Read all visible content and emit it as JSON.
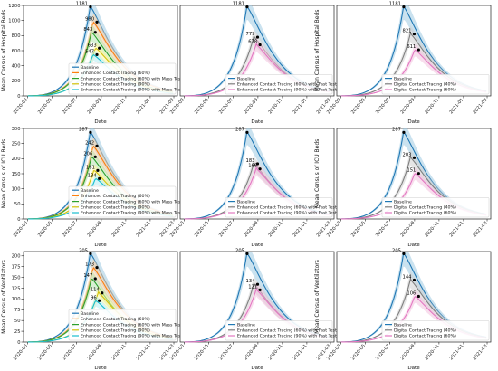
{
  "figure": {
    "panel_labels": []
  },
  "styles": {
    "series_colors": {
      "Baseline": "#1f77b4",
      "Enhanced Contact Tracing (60%)": "#ff7f0e",
      "Enhanced Contact Tracing (60%) with Mass Testing": "#2ca02c",
      "Enhanced Contact Tracing (90%)": "#d4c20a",
      "Enhanced Contact Tracing (90%) with Mass Testing": "#17becf",
      "Enhanced Contact Tracing (60%) with Fast Testing": "#7f7f7f",
      "Enhanced Contact Tracing (90%) with Fast Testing": "#e377c2",
      "Digital Contact Tracing (40%)": "#7f7f7f",
      "Digital Contact Tracing (60%)": "#e377c2"
    },
    "band_colors": {
      "Baseline": "#9ecae1",
      "Enhanced Contact Tracing (60%)": "#fdd0a2",
      "Enhanced Contact Tracing (60%) with Mass Testing": "#b6e3b0",
      "Enhanced Contact Tracing (90%)": "#fff59d",
      "Enhanced Contact Tracing (90%) with Mass Testing": "#b4ecf2",
      "Enhanced Contact Tracing (60%) with Fast Testing": "#d0d0d0",
      "Enhanced Contact Tracing (90%) with Fast Testing": "#f3c3df",
      "Digital Contact Tracing (40%)": "#d0d0d0",
      "Digital Contact Tracing (60%)": "#f3c3df"
    }
  },
  "chart_data": [
    {
      "type": "line",
      "row": 0,
      "col": 0,
      "xlabel": "Date",
      "ylabel": "Mean Census of Hospital Beds",
      "x_ticks": [
        "2020-03",
        "2020-05",
        "2020-07",
        "2020-09",
        "2020-11",
        "2021-01",
        "2021-03"
      ],
      "ylim": [
        0,
        1200
      ],
      "y_ticks": [
        0,
        200,
        400,
        600,
        800,
        1000,
        1200
      ],
      "legend": "lower-right",
      "series": [
        {
          "name": "Baseline",
          "peak_x": "2020-08-05",
          "peak": 1181
        },
        {
          "name": "Enhanced Contact Tracing (60%)",
          "peak_x": "2020-08-12",
          "peak": 980
        },
        {
          "name": "Enhanced Contact Tracing (60%) with Mass Testing",
          "peak_x": "2020-08-08",
          "peak": 843
        },
        {
          "name": "Enhanced Contact Tracing (90%)",
          "peak_x": "2020-08-18",
          "peak": 633
        },
        {
          "name": "Enhanced Contact Tracing (90%) with Mass Testing",
          "peak_x": "2020-08-12",
          "peak": 547
        }
      ],
      "labels": [
        "1181",
        "980",
        "843",
        "633",
        "547"
      ]
    },
    {
      "type": "line",
      "row": 0,
      "col": 1,
      "xlabel": "Date",
      "ylabel": "",
      "x_ticks": [
        "2020-03",
        "2020-05",
        "2020-07",
        "2020-09",
        "2020-11",
        "2021-01",
        "2021-03"
      ],
      "ylim": [
        0,
        1200
      ],
      "legend": "lower-right",
      "series": [
        {
          "name": "Baseline",
          "peak_x": "2020-08-05",
          "peak": 1181
        },
        {
          "name": "Enhanced Contact Tracing (60%) with Fast Testing",
          "peak_x": "2020-08-22",
          "peak": 779
        },
        {
          "name": "Enhanced Contact Tracing (90%) with Fast Testing",
          "peak_x": "2020-08-28",
          "peak": 678
        }
      ],
      "labels": [
        "1181",
        "779",
        "678"
      ]
    },
    {
      "type": "line",
      "row": 0,
      "col": 2,
      "xlabel": "Date",
      "ylabel": "Mean Census of Hospital Beds",
      "x_ticks": [
        "2020-03",
        "2020-05",
        "2020-07",
        "2020-09",
        "2020-11",
        "2021-01",
        "2021-03"
      ],
      "ylim": [
        0,
        1200
      ],
      "legend": "lower-right",
      "series": [
        {
          "name": "Baseline",
          "peak_x": "2020-08-05",
          "peak": 1181
        },
        {
          "name": "Digital Contact Tracing (40%)",
          "peak_x": "2020-08-22",
          "peak": 821
        },
        {
          "name": "Digital Contact Tracing (60%)",
          "peak_x": "2020-09-02",
          "peak": 611
        }
      ],
      "labels": [
        "1181",
        "821",
        "611"
      ]
    },
    {
      "type": "line",
      "row": 1,
      "col": 0,
      "xlabel": "Date",
      "ylabel": "Mean Census of ICU Beds",
      "x_ticks": [
        "2020-03",
        "2020-05",
        "2020-07",
        "2020-09",
        "2020-11",
        "2021-01",
        "2021-03"
      ],
      "ylim": [
        0,
        300
      ],
      "y_ticks": [
        0,
        50,
        100,
        150,
        200,
        250,
        300
      ],
      "legend": "lower-right",
      "series": [
        {
          "name": "Baseline",
          "peak_x": "2020-08-05",
          "peak": 287
        },
        {
          "name": "Enhanced Contact Tracing (60%)",
          "peak_x": "2020-08-12",
          "peak": 242
        },
        {
          "name": "Enhanced Contact Tracing (60%) with Mass Testing",
          "peak_x": "2020-08-08",
          "peak": 206
        },
        {
          "name": "Enhanced Contact Tracing (90%)",
          "peak_x": "2020-08-14",
          "peak": 161
        },
        {
          "name": "Enhanced Contact Tracing (90%) with Mass Testing",
          "peak_x": "2020-08-18",
          "peak": 134
        }
      ],
      "labels": [
        "287",
        "242",
        "206",
        "161",
        "134"
      ]
    },
    {
      "type": "line",
      "row": 1,
      "col": 1,
      "xlabel": "Date",
      "ylabel": "",
      "x_ticks": [
        "2020-03",
        "2020-05",
        "2020-07",
        "2020-09",
        "2020-11",
        "2021-01",
        "2021-03"
      ],
      "ylim": [
        0,
        300
      ],
      "legend": "lower-right",
      "series": [
        {
          "name": "Baseline",
          "peak_x": "2020-08-05",
          "peak": 287
        },
        {
          "name": "Enhanced Contact Tracing (60%) with Fast Testing",
          "peak_x": "2020-08-22",
          "peak": 183
        },
        {
          "name": "Enhanced Contact Tracing (90%) with Fast Testing",
          "peak_x": "2020-08-28",
          "peak": 166
        }
      ],
      "labels": [
        "287",
        "183",
        "166"
      ]
    },
    {
      "type": "line",
      "row": 1,
      "col": 2,
      "xlabel": "Date",
      "ylabel": "Mean Census of ICU Beds",
      "x_ticks": [
        "2020-03",
        "2020-05",
        "2020-07",
        "2020-09",
        "2020-11",
        "2021-01",
        "2021-03"
      ],
      "ylim": [
        0,
        300
      ],
      "legend": "lower-right",
      "series": [
        {
          "name": "Baseline",
          "peak_x": "2020-08-05",
          "peak": 287
        },
        {
          "name": "Digital Contact Tracing (40%)",
          "peak_x": "2020-08-22",
          "peak": 203
        },
        {
          "name": "Digital Contact Tracing (60%)",
          "peak_x": "2020-09-02",
          "peak": 151
        }
      ],
      "labels": [
        "287",
        "203",
        "151"
      ]
    },
    {
      "type": "line",
      "row": 2,
      "col": 0,
      "xlabel": "Date",
      "ylabel": "Mean Census of Ventilators",
      "x_ticks": [
        "2020-03",
        "2020-05",
        "2020-07",
        "2020-09",
        "2020-11",
        "2021-01",
        "2021-03"
      ],
      "ylim": [
        0,
        210
      ],
      "y_ticks": [
        0,
        25,
        50,
        75,
        100,
        125,
        150,
        175,
        200
      ],
      "legend": "lower-right",
      "series": [
        {
          "name": "Baseline",
          "peak_x": "2020-08-05",
          "peak": 205
        },
        {
          "name": "Enhanced Contact Tracing (60%)",
          "peak_x": "2020-08-12",
          "peak": 173
        },
        {
          "name": "Enhanced Contact Tracing (60%) with Mass Testing",
          "peak_x": "2020-08-08",
          "peak": 147
        },
        {
          "name": "Enhanced Contact Tracing (90%)",
          "peak_x": "2020-08-25",
          "peak": 114
        },
        {
          "name": "Enhanced Contact Tracing (90%) with Mass Testing",
          "peak_x": "2020-08-18",
          "peak": 96
        }
      ],
      "labels": [
        "205",
        "173",
        "147",
        "114",
        "96"
      ]
    },
    {
      "type": "line",
      "row": 2,
      "col": 1,
      "xlabel": "Date",
      "ylabel": "",
      "x_ticks": [
        "2020-03",
        "2020-05",
        "2020-07",
        "2020-09",
        "2020-11",
        "2021-01",
        "2021-03"
      ],
      "ylim": [
        0,
        210
      ],
      "legend": "lower-right",
      "series": [
        {
          "name": "Baseline",
          "peak_x": "2020-08-05",
          "peak": 205
        },
        {
          "name": "Enhanced Contact Tracing (60%) with Fast Testing",
          "peak_x": "2020-08-22",
          "peak": 134
        },
        {
          "name": "Enhanced Contact Tracing (90%) with Fast Testing",
          "peak_x": "2020-08-28",
          "peak": 121
        }
      ],
      "labels": [
        "205",
        "134",
        "121"
      ]
    },
    {
      "type": "line",
      "row": 2,
      "col": 2,
      "xlabel": "Date",
      "ylabel": "Mean Census of Ventilators",
      "x_ticks": [
        "2020-03",
        "2020-05",
        "2020-07",
        "2020-09",
        "2020-11",
        "2021-01",
        "2021-03"
      ],
      "ylim": [
        0,
        210
      ],
      "legend": "lower-right",
      "series": [
        {
          "name": "Baseline",
          "peak_x": "2020-08-05",
          "peak": 205
        },
        {
          "name": "Digital Contact Tracing (40%)",
          "peak_x": "2020-08-22",
          "peak": 144
        },
        {
          "name": "Digital Contact Tracing (60%)",
          "peak_x": "2020-09-02",
          "peak": 106
        }
      ],
      "labels": [
        "205",
        "144",
        "106"
      ]
    }
  ]
}
